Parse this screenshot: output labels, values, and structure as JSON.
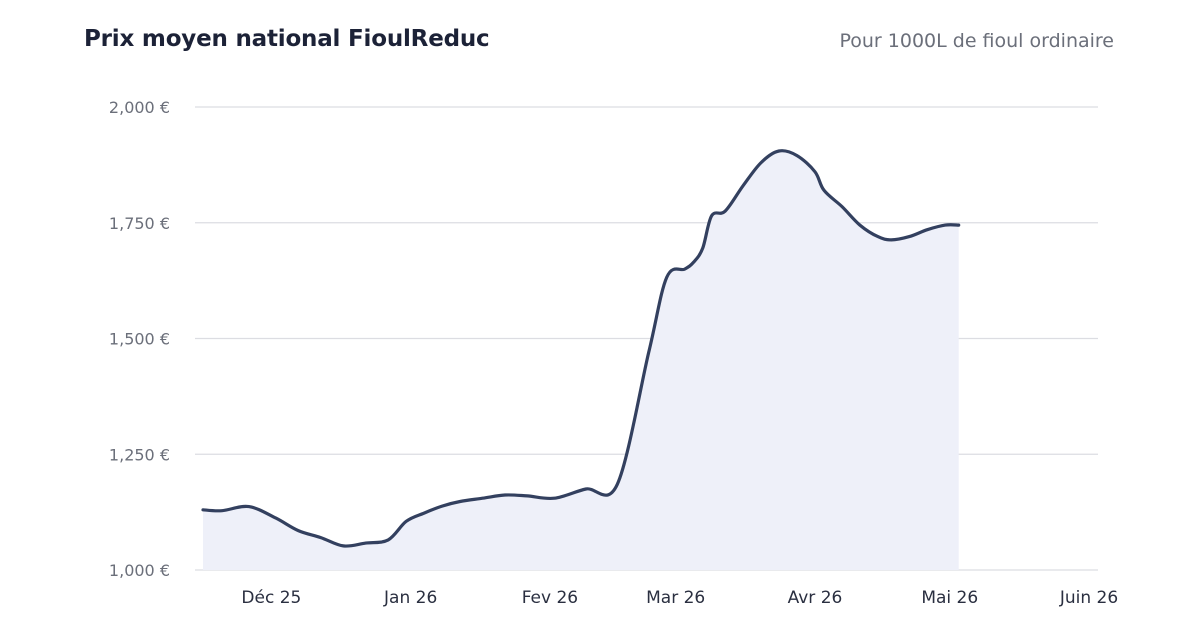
{
  "header": {
    "title": "Prix moyen national FioulReduc",
    "subtitle": "Pour 1000L de fioul ordinaire"
  },
  "colors": {
    "line": "#33405f",
    "area": "#eef0f9",
    "grid": "#dcdde2",
    "title": "#1c2237",
    "axis_text": "#6b6f7a"
  },
  "chart_data": {
    "type": "area",
    "title": "Prix moyen national FioulReduc",
    "subtitle": "Pour 1000L de fioul ordinaire",
    "xlabel": "",
    "ylabel": "",
    "ylim": [
      1000,
      2000
    ],
    "y_ticks": [
      1000,
      1250,
      1500,
      1750,
      2000
    ],
    "y_tick_labels": [
      "1,000 €",
      "1,250 €",
      "1,500 €",
      "1,750 €",
      "2,000 €"
    ],
    "x_ticks": [
      "2025-12-01",
      "2026-01-01",
      "2026-02-01",
      "2026-03-01",
      "2026-04-01",
      "2026-05-01",
      "2026-06-01"
    ],
    "x_tick_labels": [
      "Déc 25",
      "Jan 26",
      "Fev 26",
      "Mar 26",
      "Avr 26",
      "Mai 26",
      "Juin 26"
    ],
    "xlim": [
      "2025-11-14",
      "2026-06-03"
    ],
    "grid": true,
    "legend": "none",
    "series": [
      {
        "x": [
          "2025-11-14",
          "2025-11-20",
          "2025-11-26",
          "2025-12-02",
          "2025-12-07",
          "2025-12-12",
          "2025-12-17",
          "2025-12-22",
          "2025-12-27",
          "2025-12-31",
          "2026-01-04",
          "2026-01-08",
          "2026-01-12",
          "2026-01-17",
          "2026-01-22",
          "2026-01-27",
          "2026-02-02",
          "2026-02-09",
          "2026-02-16",
          "2026-02-23",
          "2026-02-27",
          "2026-03-03",
          "2026-03-05",
          "2026-03-07",
          "2026-03-09",
          "2026-03-12",
          "2026-03-16",
          "2026-03-20",
          "2026-03-24",
          "2026-03-28",
          "2026-04-01",
          "2026-04-03",
          "2026-04-07",
          "2026-04-11",
          "2026-04-15",
          "2026-04-18",
          "2026-04-22",
          "2026-04-26",
          "2026-04-30",
          "2026-05-03"
        ],
        "y": [
          1130,
          1128,
          1137,
          1112,
          1085,
          1070,
          1052,
          1058,
          1065,
          1105,
          1123,
          1138,
          1148,
          1155,
          1162,
          1160,
          1155,
          1175,
          1185,
          1470,
          1632,
          1650,
          1665,
          1695,
          1765,
          1775,
          1830,
          1880,
          1905,
          1895,
          1860,
          1820,
          1785,
          1745,
          1720,
          1713,
          1720,
          1735,
          1745,
          1745
        ]
      }
    ]
  }
}
